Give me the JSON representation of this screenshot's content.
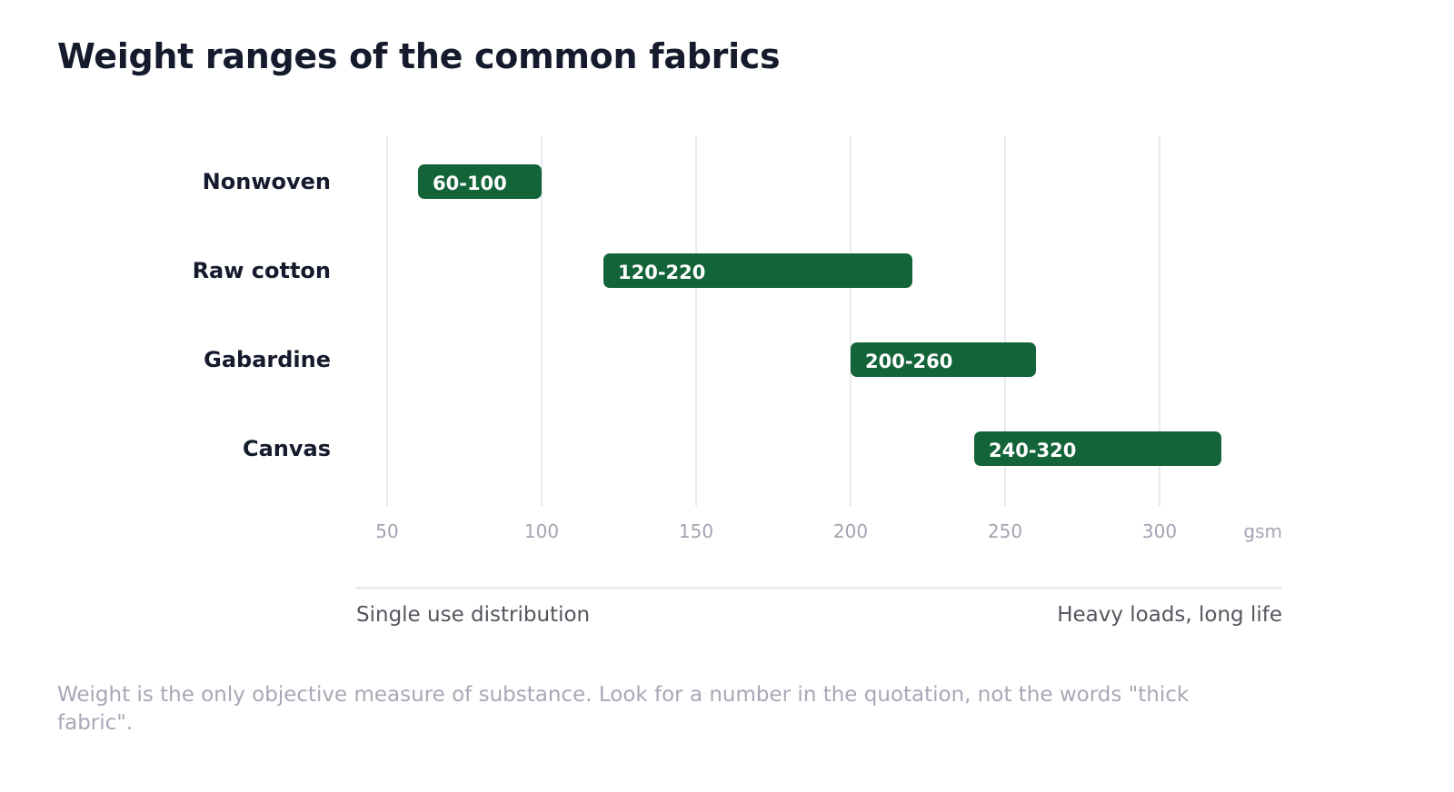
{
  "title": "Weight ranges of the common fabrics",
  "chart_data": {
    "type": "bar",
    "orientation": "horizontal-range",
    "title": "Weight ranges of the common fabrics",
    "categories": [
      "Nonwoven",
      "Raw cotton",
      "Gabardine",
      "Canvas"
    ],
    "ranges": [
      {
        "category": "Nonwoven",
        "min": 60,
        "max": 100,
        "label": "60-100"
      },
      {
        "category": "Raw cotton",
        "min": 120,
        "max": 220,
        "label": "120-220"
      },
      {
        "category": "Gabardine",
        "min": 200,
        "max": 260,
        "label": "200-260"
      },
      {
        "category": "Canvas",
        "min": 240,
        "max": 320,
        "label": "240-320"
      }
    ],
    "x_ticks": [
      "50",
      "100",
      "150",
      "200",
      "250",
      "300"
    ],
    "x_tick_values": [
      50,
      100,
      150,
      200,
      250,
      300
    ],
    "x_unit": "gsm",
    "xlim": [
      50,
      330
    ],
    "grid": "vertical",
    "bar_color": "#14643a"
  },
  "scale": {
    "left_label": "Single use distribution",
    "right_label": "Heavy loads, long life"
  },
  "footnote": "Weight is the only objective measure of substance. Look for a number in the quotation, not the words \"thick fabric\"."
}
